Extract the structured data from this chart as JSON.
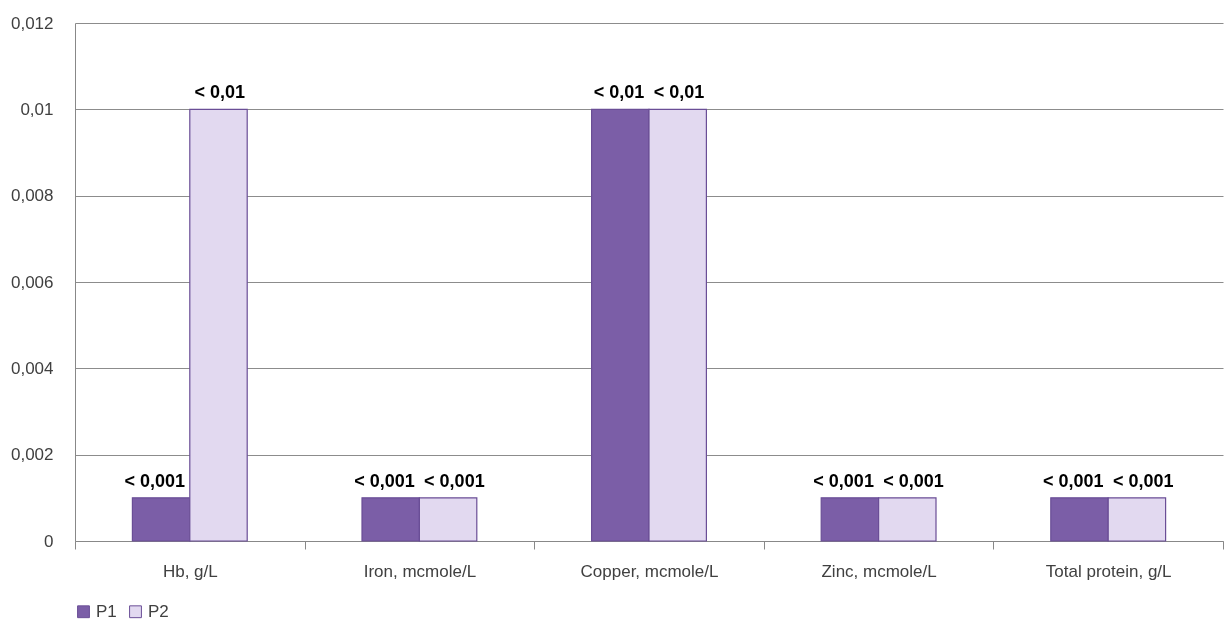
{
  "chart_data": {
    "type": "bar",
    "categories": [
      "Hb, g/L",
      "Iron, mcmole/L",
      "Copper, mcmole/L",
      "Zinc, mcmole/L",
      "Total protein, g/L"
    ],
    "series": [
      {
        "name": "P1",
        "color": "#7b5ea7",
        "values": [
          0.001,
          0.001,
          0.01,
          0.001,
          0.001
        ],
        "value_labels": [
          "< 0,001",
          "< 0,001",
          "< 0,01",
          "< 0,001",
          "< 0,001"
        ]
      },
      {
        "name": "P2",
        "color": "#e2d9f0",
        "values": [
          0.01,
          0.001,
          0.01,
          0.001,
          0.001
        ],
        "value_labels": [
          "< 0,01",
          "< 0,001",
          "< 0,01",
          "< 0,001",
          "< 0,001"
        ]
      }
    ],
    "ylim": [
      0,
      0.012
    ],
    "yticks": [
      0,
      {
        "value": 0.002,
        "label": "0,002"
      },
      {
        "value": 0.004,
        "label": "0,004"
      },
      {
        "value": 0.006,
        "label": "0,006"
      },
      {
        "value": 0.008,
        "label": "0,008"
      },
      {
        "value": 0.01,
        "label": "0,01"
      },
      {
        "value": 0.012,
        "label": "0,012"
      }
    ],
    "grid": "y",
    "legend": "bottom left"
  }
}
